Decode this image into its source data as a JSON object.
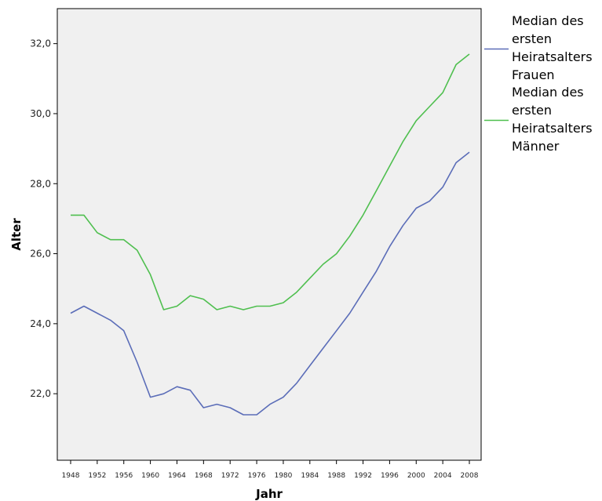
{
  "chart_data": {
    "type": "line",
    "title": "",
    "xlabel": "Jahr",
    "ylabel": "Alter",
    "x_ticks": [
      "1948",
      "1952",
      "1956",
      "1960",
      "1964",
      "1968",
      "1972",
      "1976",
      "1980",
      "1984",
      "1988",
      "1992",
      "1996",
      "2000",
      "2004",
      "2008"
    ],
    "y_ticks": [
      "22,0",
      "24,0",
      "26,0",
      "28,0",
      "30,0",
      "32,0"
    ],
    "y_tick_values": [
      22,
      24,
      26,
      28,
      30,
      32
    ],
    "xlim": [
      1948,
      2008
    ],
    "ylim": [
      20.1,
      33.0
    ],
    "grid": false,
    "legend_position": "right",
    "x": [
      1948,
      1950,
      1952,
      1954,
      1956,
      1958,
      1960,
      1962,
      1964,
      1966,
      1968,
      1970,
      1972,
      1974,
      1976,
      1978,
      1980,
      1982,
      1984,
      1986,
      1988,
      1990,
      1992,
      1994,
      1996,
      1998,
      2000,
      2002,
      2004,
      2006,
      2008
    ],
    "series": [
      {
        "name": "Median des ersten Heiratsalters Frauen",
        "legend_lines": [
          "Median des",
          "ersten",
          "Heiratsalters",
          "Frauen"
        ],
        "color": "#5b6db8",
        "values": [
          24.3,
          24.5,
          24.3,
          24.1,
          23.8,
          22.9,
          21.9,
          22.0,
          22.2,
          22.1,
          21.6,
          21.7,
          21.6,
          21.4,
          21.4,
          21.7,
          21.9,
          22.3,
          22.8,
          23.3,
          23.8,
          24.3,
          24.9,
          25.5,
          26.2,
          26.8,
          27.3,
          27.5,
          27.9,
          28.6,
          28.9
        ]
      },
      {
        "name": "Median des ersten Heiratsalters Männer",
        "legend_lines": [
          "Median des",
          "ersten",
          "Heiratsalters",
          "Männer"
        ],
        "color": "#4fbf4f",
        "values": [
          27.1,
          27.1,
          26.6,
          26.4,
          26.4,
          26.1,
          25.4,
          24.4,
          24.5,
          24.8,
          24.7,
          24.4,
          24.5,
          24.4,
          24.5,
          24.5,
          24.6,
          24.9,
          25.3,
          25.7,
          26.0,
          26.5,
          27.1,
          27.8,
          28.5,
          29.2,
          29.8,
          30.2,
          30.6,
          31.4,
          31.7
        ]
      }
    ]
  },
  "colors": {
    "plot_background": "#f0f0f0",
    "axis": "#000000"
  }
}
